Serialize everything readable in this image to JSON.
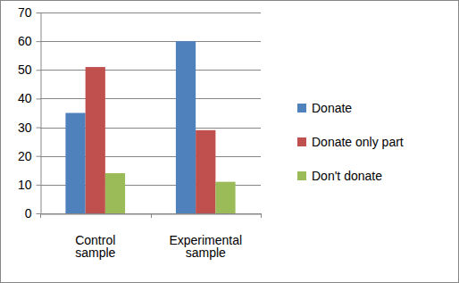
{
  "chart_data": {
    "type": "bar",
    "categories": [
      "Control sample",
      "Experimental sample"
    ],
    "series": [
      {
        "name": "Donate",
        "color": "#4f81bd",
        "values": [
          35,
          60
        ]
      },
      {
        "name": "Donate only part",
        "color": "#c0504d",
        "values": [
          51,
          29
        ]
      },
      {
        "name": "Don't donate",
        "color": "#9bbb59",
        "values": [
          14,
          11
        ]
      }
    ],
    "ylim": [
      0,
      70
    ],
    "yticks": [
      0,
      10,
      20,
      30,
      40,
      50,
      60,
      70
    ],
    "grid": true,
    "legend": "right"
  }
}
